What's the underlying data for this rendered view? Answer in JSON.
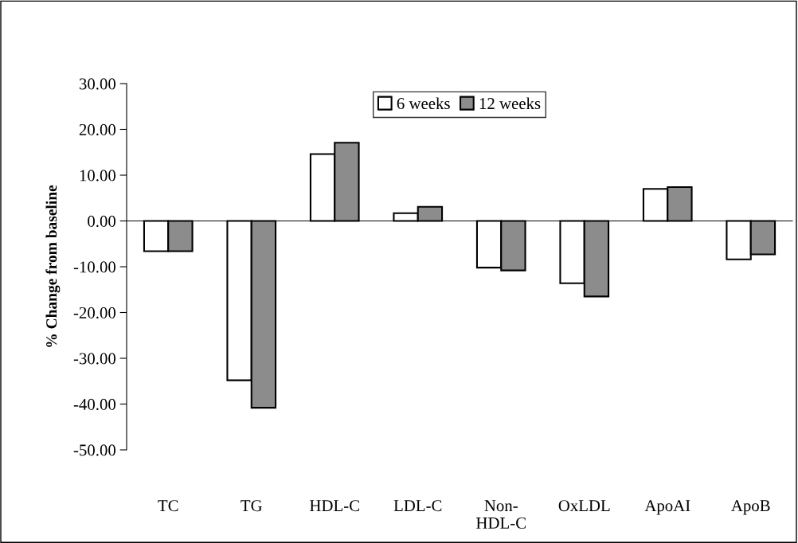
{
  "chart_data": {
    "type": "bar",
    "ylabel": "% Change from baseline",
    "categories": [
      "TC",
      "TG",
      "HDL-C",
      "LDL-C",
      "Non-\nHDL-C",
      "OxLDL",
      "ApoAI",
      "ApoB"
    ],
    "series": [
      {
        "name": "6 weeks",
        "color": "#ffffff",
        "values": [
          -6.6,
          -34.8,
          14.6,
          1.7,
          -10.2,
          -13.6,
          7.0,
          -8.4
        ]
      },
      {
        "name": "12 weeks",
        "color": "#8c8c8c",
        "values": [
          -6.6,
          -40.8,
          17.1,
          3.1,
          -10.8,
          -16.5,
          7.4,
          -7.3
        ]
      }
    ],
    "ylim": [
      -50,
      30
    ],
    "yticks": [
      {
        "value": -50,
        "label": "-50.00"
      },
      {
        "value": -40,
        "label": "-40.00"
      },
      {
        "value": -30,
        "label": "-30.00"
      },
      {
        "value": -20,
        "label": "-20.00"
      },
      {
        "value": -10,
        "label": "-10.00"
      },
      {
        "value": 0,
        "label": "0.00"
      },
      {
        "value": 10,
        "label": "10.00"
      },
      {
        "value": 20,
        "label": "20.00"
      },
      {
        "value": 30,
        "label": "30.00"
      }
    ],
    "legend": "top"
  }
}
